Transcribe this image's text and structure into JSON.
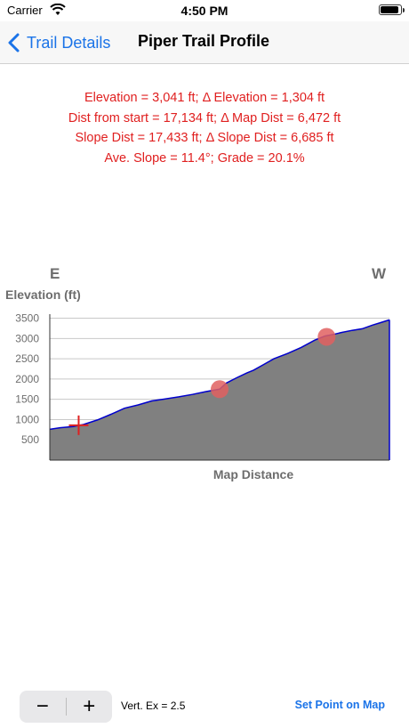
{
  "status_bar": {
    "carrier": "Carrier",
    "time": "4:50 PM",
    "battery_level": 0.9
  },
  "nav": {
    "back_label": "Trail Details",
    "title": "Piper Trail Profile"
  },
  "stats": {
    "line1": "Elevation = 3,041 ft;   Δ Elevation = 1,304 ft",
    "line2": "Dist from start = 17,134 ft;   Δ Map Dist = 6,472 ft",
    "line3": "Slope Dist = 17,433 ft;   Δ Slope Dist = 6,685 ft",
    "line4": "Ave. Slope = 11.4°;   Grade = 20.1%"
  },
  "direction": {
    "left": "E",
    "right": "W"
  },
  "colors": {
    "accent": "#1a73e8",
    "stats": "#e02020",
    "fill": "#808080",
    "line": "#0000cc",
    "marker": "#e06060"
  },
  "chart_data": {
    "type": "area",
    "ylabel": "Elevation (ft)",
    "xlabel": "Map Distance",
    "ylim": [
      0,
      3600
    ],
    "yticks": [
      500,
      1000,
      1500,
      2000,
      2500,
      3000,
      3500
    ],
    "yticklabels": [
      "500",
      "1000",
      "1500",
      "2000",
      "2500",
      "3000",
      "3500"
    ],
    "xlim": [
      0,
      1
    ],
    "x": [
      0,
      0.03,
      0.07,
      0.1,
      0.14,
      0.18,
      0.22,
      0.26,
      0.3,
      0.34,
      0.38,
      0.42,
      0.46,
      0.5,
      0.52,
      0.55,
      0.58,
      0.6,
      0.63,
      0.66,
      0.7,
      0.74,
      0.78,
      0.81,
      0.84,
      0.86,
      0.89,
      0.92,
      0.95,
      0.97,
      1.0
    ],
    "y": [
      760,
      800,
      830,
      880,
      990,
      1130,
      1280,
      1360,
      1460,
      1510,
      1560,
      1620,
      1690,
      1750,
      1900,
      2030,
      2150,
      2220,
      2360,
      2500,
      2630,
      2780,
      2960,
      3060,
      3110,
      3150,
      3200,
      3240,
      3330,
      3380,
      3460
    ],
    "crosshair": {
      "x": 0.085,
      "y": 860
    },
    "points": [
      {
        "x": 0.5,
        "y": 1750
      },
      {
        "x": 0.815,
        "y": 3041
      }
    ]
  },
  "bottom": {
    "minus_label": "−",
    "plus_label": "+",
    "vert_ex": "Vert. Ex = 2.5",
    "set_point": "Set Point on Map"
  }
}
